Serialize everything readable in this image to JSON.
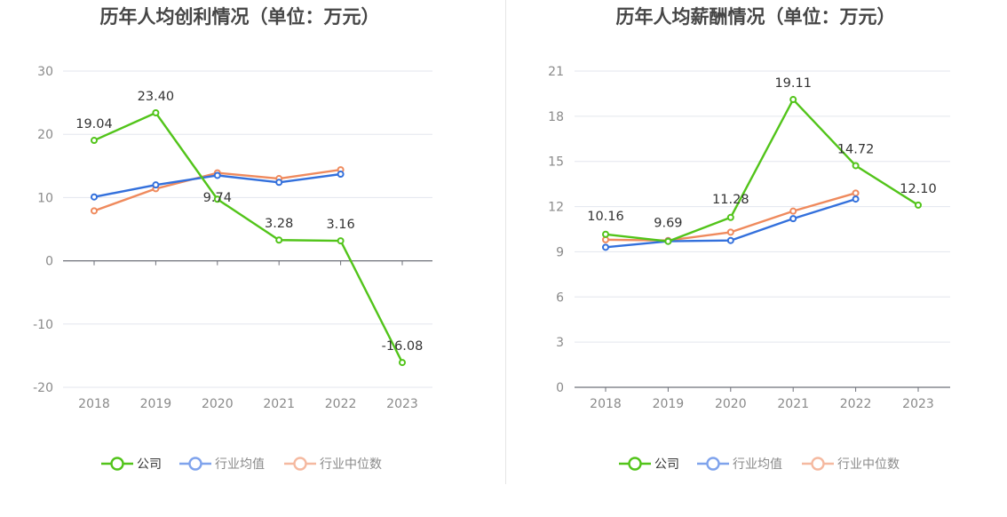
{
  "chart_data": [
    {
      "type": "line",
      "title": "历年人均创利情况（单位：万元）",
      "categories": [
        "2018",
        "2019",
        "2020",
        "2021",
        "2022",
        "2023"
      ],
      "ylim": [
        -20,
        30
      ],
      "yticks": [
        30,
        20,
        10,
        0,
        -10,
        -20
      ],
      "grid": true,
      "legend_position": "bottom",
      "series": [
        {
          "name": "公司",
          "color": "#52c41a",
          "values": [
            19.04,
            23.4,
            9.74,
            3.28,
            3.16,
            -16.08
          ],
          "labels": [
            "19.04",
            "23.40",
            "9.74",
            "3.28",
            "3.16",
            "-16.08"
          ]
        },
        {
          "name": "行业均值",
          "color": "#3370dc",
          "values": [
            10.1,
            12.0,
            13.5,
            12.4,
            13.7,
            null
          ]
        },
        {
          "name": "行业中位数",
          "color": "#ef8a5d",
          "values": [
            7.9,
            11.4,
            13.9,
            13.0,
            14.4,
            null
          ]
        }
      ]
    },
    {
      "type": "line",
      "title": "历年人均薪酬情况（单位：万元）",
      "categories": [
        "2018",
        "2019",
        "2020",
        "2021",
        "2022",
        "2023"
      ],
      "ylim": [
        0,
        21
      ],
      "yticks": [
        21,
        18,
        15,
        12,
        9,
        6,
        3,
        0
      ],
      "grid": true,
      "legend_position": "bottom",
      "series": [
        {
          "name": "公司",
          "color": "#52c41a",
          "values": [
            10.16,
            9.69,
            11.28,
            19.11,
            14.72,
            12.1
          ],
          "labels": [
            "10.16",
            "9.69",
            "11.28",
            "19.11",
            "14.72",
            "12.10"
          ]
        },
        {
          "name": "行业均值",
          "color": "#3370dc",
          "values": [
            9.3,
            9.7,
            9.75,
            11.2,
            12.5,
            null
          ]
        },
        {
          "name": "行业中位数",
          "color": "#ef8a5d",
          "values": [
            9.8,
            9.75,
            10.3,
            11.7,
            12.9,
            null
          ]
        }
      ]
    }
  ],
  "legend_icon_colors": {
    "公司": "#52c41a",
    "行业均值": "#7fa3ec",
    "行业中位数": "#f5b9a0"
  }
}
